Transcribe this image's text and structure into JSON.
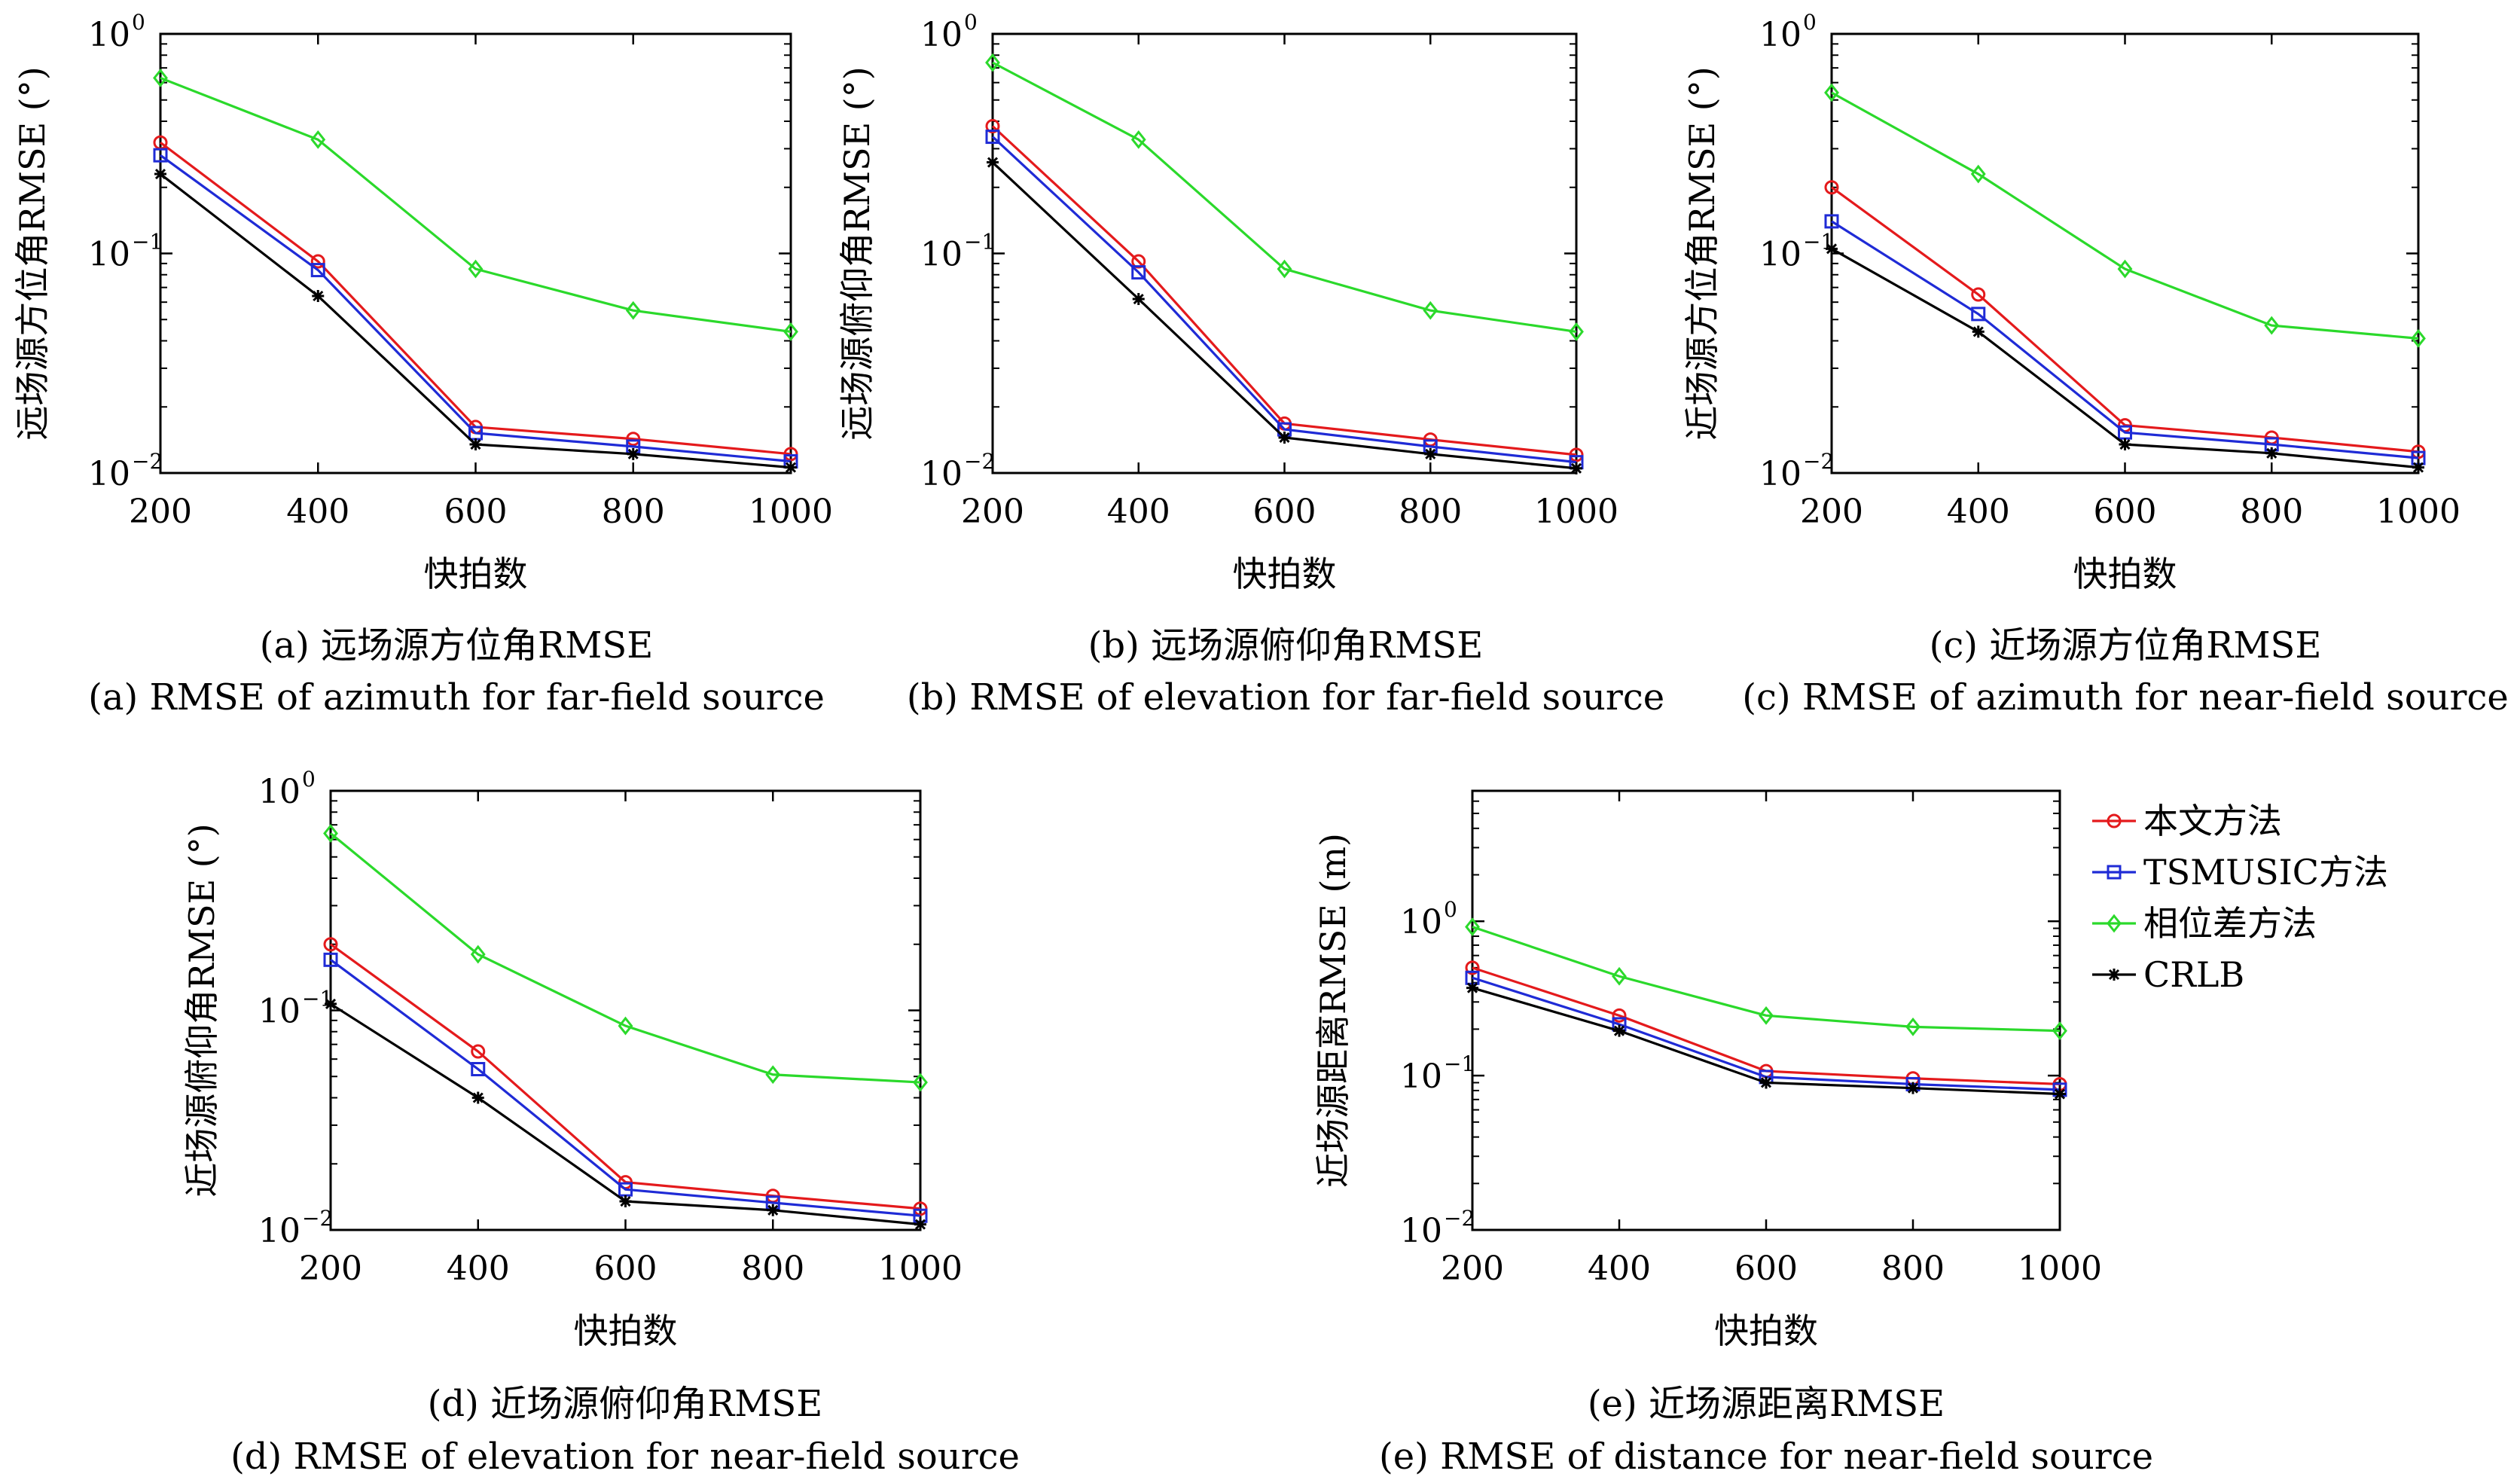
{
  "chart_data": [
    {
      "id": "a",
      "type": "line",
      "xlabel": "快拍数",
      "ylabel": "远场源方位角RMSE (°)",
      "caption_cn": "(a) 远场源方位角RMSE",
      "caption_en": "(a) RMSE of azimuth for far-field source",
      "x": [
        200,
        400,
        600,
        800,
        1000
      ],
      "xlim": [
        200,
        1000
      ],
      "ylim": [
        0.01,
        1
      ],
      "yscale": "log",
      "series": [
        {
          "name": "本文方法",
          "color": "#e41a1c",
          "marker": "circle",
          "values": [
            0.32,
            0.092,
            0.0162,
            0.0143,
            0.0122
          ]
        },
        {
          "name": "TSMUSIC方法",
          "color": "#1f2bd6",
          "marker": "square",
          "values": [
            0.28,
            0.084,
            0.0152,
            0.0132,
            0.0113
          ]
        },
        {
          "name": "相位差方法",
          "color": "#2bd92b",
          "marker": "diamond",
          "values": [
            0.63,
            0.33,
            0.085,
            0.055,
            0.044
          ]
        },
        {
          "name": "CRLB",
          "color": "#000000",
          "marker": "star",
          "values": [
            0.23,
            0.064,
            0.0135,
            0.0122,
            0.0106
          ]
        }
      ]
    },
    {
      "id": "b",
      "type": "line",
      "xlabel": "快拍数",
      "ylabel": "远场源俯仰角RMSE (°)",
      "caption_cn": "(b) 远场源俯仰角RMSE",
      "caption_en": "(b) RMSE of elevation for far-field source",
      "x": [
        200,
        400,
        600,
        800,
        1000
      ],
      "xlim": [
        200,
        1000
      ],
      "ylim": [
        0.01,
        1
      ],
      "yscale": "log",
      "series": [
        {
          "name": "本文方法",
          "color": "#e41a1c",
          "marker": "circle",
          "values": [
            0.38,
            0.092,
            0.0168,
            0.0142,
            0.0121
          ]
        },
        {
          "name": "TSMUSIC方法",
          "color": "#1f2bd6",
          "marker": "square",
          "values": [
            0.34,
            0.082,
            0.0158,
            0.0132,
            0.0112
          ]
        },
        {
          "name": "相位差方法",
          "color": "#2bd92b",
          "marker": "diamond",
          "values": [
            0.74,
            0.33,
            0.085,
            0.055,
            0.044
          ]
        },
        {
          "name": "CRLB",
          "color": "#000000",
          "marker": "star",
          "values": [
            0.26,
            0.062,
            0.0145,
            0.0122,
            0.0105
          ]
        }
      ]
    },
    {
      "id": "c",
      "type": "line",
      "xlabel": "快拍数",
      "ylabel": "近场源方位角RMSE (°)",
      "caption_cn": "(c) 近场源方位角RMSE",
      "caption_en": "(c) RMSE of azimuth for near-field source",
      "x": [
        200,
        400,
        600,
        800,
        1000
      ],
      "xlim": [
        200,
        1000
      ],
      "ylim": [
        0.01,
        1
      ],
      "yscale": "log",
      "series": [
        {
          "name": "本文方法",
          "color": "#e41a1c",
          "marker": "circle",
          "values": [
            0.2,
            0.065,
            0.0165,
            0.0145,
            0.0125
          ]
        },
        {
          "name": "TSMUSIC方法",
          "color": "#1f2bd6",
          "marker": "square",
          "values": [
            0.14,
            0.053,
            0.0153,
            0.0135,
            0.0117
          ]
        },
        {
          "name": "相位差方法",
          "color": "#2bd92b",
          "marker": "diamond",
          "values": [
            0.54,
            0.23,
            0.085,
            0.047,
            0.041
          ]
        },
        {
          "name": "CRLB",
          "color": "#000000",
          "marker": "star",
          "values": [
            0.105,
            0.044,
            0.0135,
            0.0123,
            0.0106
          ]
        }
      ]
    },
    {
      "id": "d",
      "type": "line",
      "xlabel": "快拍数",
      "ylabel": "近场源俯仰角RMSE (°)",
      "caption_cn": "(d) 近场源俯仰角RMSE",
      "caption_en": "(d) RMSE of elevation for near-field source",
      "x": [
        200,
        400,
        600,
        800,
        1000
      ],
      "xlim": [
        200,
        1000
      ],
      "ylim": [
        0.01,
        1
      ],
      "yscale": "log",
      "series": [
        {
          "name": "本文方法",
          "color": "#e41a1c",
          "marker": "circle",
          "values": [
            0.2,
            0.065,
            0.0165,
            0.0143,
            0.0125
          ]
        },
        {
          "name": "TSMUSIC方法",
          "color": "#1f2bd6",
          "marker": "square",
          "values": [
            0.17,
            0.054,
            0.0153,
            0.0133,
            0.0116
          ]
        },
        {
          "name": "相位差方法",
          "color": "#2bd92b",
          "marker": "diamond",
          "values": [
            0.64,
            0.18,
            0.085,
            0.051,
            0.047
          ]
        },
        {
          "name": "CRLB",
          "color": "#000000",
          "marker": "star",
          "values": [
            0.107,
            0.04,
            0.0135,
            0.0123,
            0.0106
          ]
        }
      ]
    },
    {
      "id": "e",
      "type": "line",
      "xlabel": "快拍数",
      "ylabel": "近场源距离RMSE (m)",
      "caption_cn": "(e) 近场源距离RMSE",
      "caption_en": "(e) RMSE of distance for near-field source",
      "x": [
        200,
        400,
        600,
        800,
        1000
      ],
      "xlim": [
        200,
        1000
      ],
      "ylim": [
        0.01,
        7
      ],
      "yscale": "log",
      "legend": "top-right outside",
      "series": [
        {
          "name": "本文方法",
          "color": "#e41a1c",
          "marker": "circle",
          "values": [
            0.5,
            0.245,
            0.107,
            0.096,
            0.088
          ]
        },
        {
          "name": "TSMUSIC方法",
          "color": "#1f2bd6",
          "marker": "square",
          "values": [
            0.43,
            0.215,
            0.098,
            0.088,
            0.081
          ]
        },
        {
          "name": "相位差方法",
          "color": "#2bd92b",
          "marker": "diamond",
          "values": [
            0.92,
            0.44,
            0.245,
            0.207,
            0.195
          ]
        },
        {
          "name": "CRLB",
          "color": "#000000",
          "marker": "star",
          "values": [
            0.37,
            0.195,
            0.09,
            0.083,
            0.076
          ]
        }
      ]
    }
  ],
  "ticks": {
    "x": [
      "200",
      "400",
      "600",
      "800",
      "1000"
    ],
    "y_base": "10",
    "y_exps": [
      "0",
      "−1",
      "−2"
    ]
  }
}
